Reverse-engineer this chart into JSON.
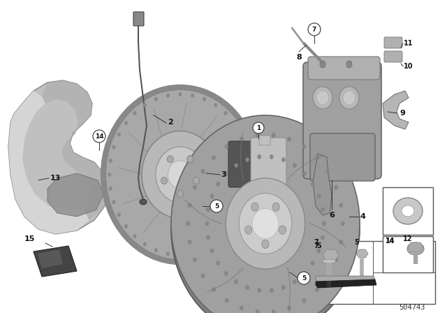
{
  "bg_color": "#ffffff",
  "diagram_number": "504743",
  "gray_main": "#a8a8a8",
  "gray_dark": "#707070",
  "gray_light": "#d0d0d0",
  "gray_mid": "#909090",
  "line_color": "#333333",
  "shield_light": "#c8c8c8",
  "shield_dark": "#888888",
  "disc_face": "#b0b0b0",
  "disc_hub": "#c0c0c0",
  "disc_edge": "#787878"
}
